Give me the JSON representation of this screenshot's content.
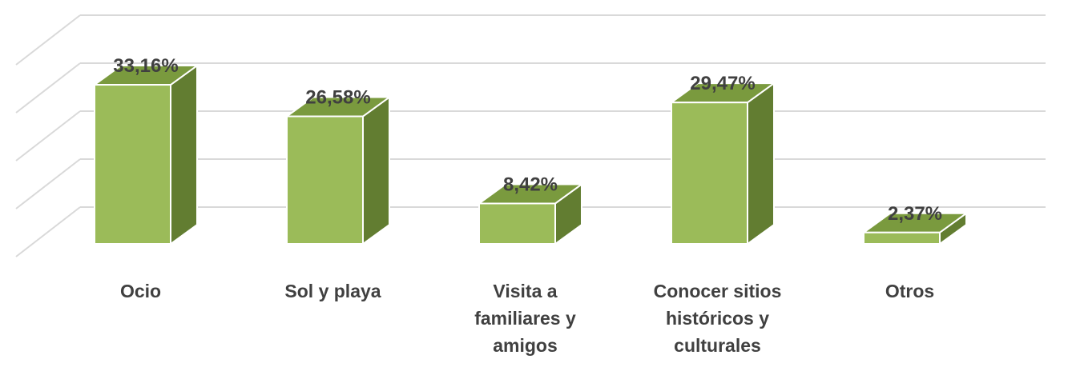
{
  "chart_data": {
    "type": "bar",
    "style": "3d-column",
    "categories": [
      "Ocio",
      "Sol y playa",
      "Visita a familiares y amigos",
      "Conocer sitios históricos y culturales",
      "Otros"
    ],
    "category_label_lines": [
      [
        "Ocio"
      ],
      [
        "Sol y playa"
      ],
      [
        "Visita a",
        "familiares y",
        "amigos"
      ],
      [
        "Conocer sitios",
        "históricos y",
        "culturales"
      ],
      [
        "Otros"
      ]
    ],
    "values": [
      33.16,
      26.58,
      8.42,
      29.47,
      2.37
    ],
    "value_labels": [
      "33,16%",
      "26,58%",
      "8,42%",
      "29,47%",
      "2,37%"
    ],
    "ylim": [
      0,
      40
    ],
    "grid": true,
    "legend": "none",
    "title": "",
    "xlabel": "",
    "ylabel": "",
    "colors": {
      "bar_front": "#9BBB59",
      "bar_top": "#7A9A3E",
      "bar_side": "#627D31",
      "gridline": "#D9D9D9",
      "label_text": "#404040"
    }
  }
}
